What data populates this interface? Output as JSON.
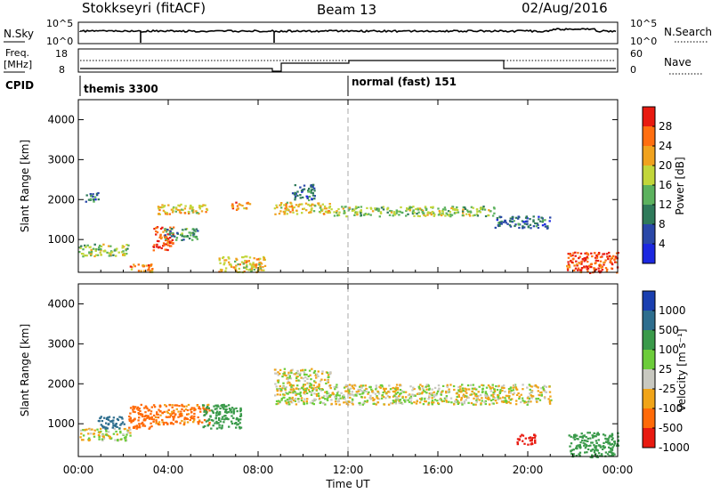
{
  "header": {
    "station": "Stokkseyri (fitACF)",
    "beam": "Beam 13",
    "date": "02/Aug/2016"
  },
  "status_panels": {
    "nsky": {
      "label": "N.Sky",
      "ticks": [
        "10^5",
        "10^0"
      ]
    },
    "nsearch": {
      "label": "N.Search",
      "ticks": [
        "10^5",
        "10^0"
      ]
    },
    "freq": {
      "label": "Freq.",
      "unit": "[MHz]",
      "ticks": [
        "18",
        "8"
      ]
    },
    "nave": {
      "label": "Nave",
      "ticks": [
        "60",
        "0"
      ]
    },
    "cpid": {
      "label": "CPID",
      "modes": [
        {
          "name": "themis 3300",
          "start_hour": 0
        },
        {
          "name": "normal (fast) 151",
          "start_hour": 12
        }
      ]
    }
  },
  "axes": {
    "xlabel": "Time UT",
    "xticks": [
      "00:00",
      "04:00",
      "08:00",
      "12:00",
      "16:00",
      "20:00",
      "00:00"
    ],
    "xrange_hours": [
      0,
      24
    ],
    "ylabel": "Slant Range [km]",
    "yticks": [
      "1000",
      "2000",
      "3000",
      "4000"
    ],
    "yrange_km": [
      180,
      4500
    ]
  },
  "colorbars": {
    "power": {
      "label": "Power [dB]",
      "ticks": [
        "4",
        "8",
        "12",
        "16",
        "20",
        "24",
        "28"
      ],
      "colors": [
        "#1c28e0",
        "#2a48a8",
        "#2f7a5a",
        "#5cb25e",
        "#c2d63a",
        "#f0a21e",
        "#ff6e10",
        "#e81a10"
      ]
    },
    "velocity": {
      "label": "Velocity [m s⁻¹]",
      "ticks": [
        "1000",
        "500",
        "100",
        "25",
        "-25",
        "-100",
        "-500",
        "-1000"
      ],
      "colors": [
        "#1a3fb0",
        "#2e6e8e",
        "#3a9a4a",
        "#6ccc3a",
        "#c8c8c0",
        "#f0a418",
        "#ff6a08",
        "#e81a10"
      ]
    }
  },
  "chart_data": [
    {
      "type": "heatmap",
      "title": "Power",
      "x_unit": "hours UT",
      "y_unit": "km",
      "colorbar": "Power [dB]",
      "regions": [
        {
          "t0": 0.3,
          "t1": 0.9,
          "r0": 1950,
          "r1": 2200,
          "value": 8
        },
        {
          "t0": 0.0,
          "t1": 2.2,
          "r0": 600,
          "r1": 900,
          "value": 16
        },
        {
          "t0": 2.2,
          "t1": 3.3,
          "r0": 200,
          "r1": 400,
          "value": 24
        },
        {
          "t0": 3.3,
          "t1": 4.2,
          "r0": 750,
          "r1": 1350,
          "value": 28
        },
        {
          "t0": 3.5,
          "t1": 5.7,
          "r0": 1650,
          "r1": 1900,
          "value": 20
        },
        {
          "t0": 3.8,
          "t1": 5.3,
          "r0": 1000,
          "r1": 1300,
          "value": 12
        },
        {
          "t0": 6.2,
          "t1": 8.3,
          "r0": 200,
          "r1": 600,
          "value": 20
        },
        {
          "t0": 6.8,
          "t1": 7.6,
          "r0": 1750,
          "r1": 1950,
          "value": 24
        },
        {
          "t0": 8.7,
          "t1": 11.2,
          "r0": 1650,
          "r1": 1950,
          "value": 20
        },
        {
          "t0": 9.5,
          "t1": 10.5,
          "r0": 2000,
          "r1": 2400,
          "value": 8
        },
        {
          "t0": 11.2,
          "t1": 18.5,
          "r0": 1600,
          "r1": 1850,
          "value": 16
        },
        {
          "t0": 18.5,
          "t1": 21.0,
          "r0": 1300,
          "r1": 1600,
          "value": 8
        },
        {
          "t0": 21.7,
          "t1": 24.0,
          "r0": 180,
          "r1": 700,
          "value": 28
        }
      ]
    },
    {
      "type": "heatmap",
      "title": "Velocity",
      "x_unit": "hours UT",
      "y_unit": "km",
      "colorbar": "Velocity [m s⁻¹]",
      "regions": [
        {
          "t0": 0.0,
          "t1": 2.3,
          "r0": 600,
          "r1": 900,
          "value": 0
        },
        {
          "t0": 0.8,
          "t1": 2.0,
          "r0": 900,
          "r1": 1200,
          "value": 700
        },
        {
          "t0": 2.2,
          "t1": 3.3,
          "r0": 900,
          "r1": 1500,
          "value": -300
        },
        {
          "t0": 3.3,
          "t1": 5.8,
          "r0": 1000,
          "r1": 1500,
          "value": -150
        },
        {
          "t0": 5.5,
          "t1": 7.2,
          "r0": 900,
          "r1": 1500,
          "value": 300
        },
        {
          "t0": 8.7,
          "t1": 11.2,
          "r0": 1500,
          "r1": 2400,
          "value": 0
        },
        {
          "t0": 11.2,
          "t1": 21.0,
          "r0": 1500,
          "r1": 2000,
          "value": 0
        },
        {
          "t0": 19.5,
          "t1": 20.3,
          "r0": 500,
          "r1": 800,
          "value": -600
        },
        {
          "t0": 21.8,
          "t1": 24.0,
          "r0": 180,
          "r1": 800,
          "value": 200
        }
      ]
    }
  ]
}
